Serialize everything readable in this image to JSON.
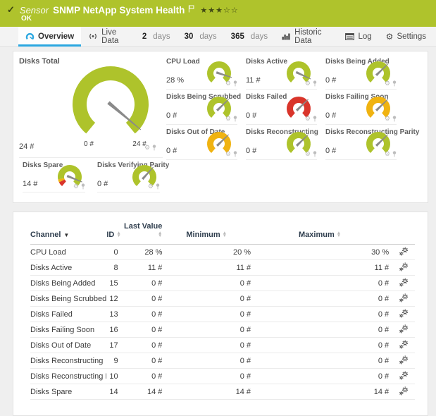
{
  "header": {
    "check": "✓",
    "kind": "Sensor",
    "title": "SNMP NetApp System Health",
    "status": "OK",
    "stars_filled": 3,
    "stars_total": 5
  },
  "tabs": {
    "overview": "Overview",
    "live_data": "Live Data",
    "d2": {
      "num": "2",
      "unit": "days"
    },
    "d30": {
      "num": "30",
      "unit": "days"
    },
    "d365": {
      "num": "365",
      "unit": "days"
    },
    "historic": "Historic Data",
    "log": "Log",
    "settings": "Settings"
  },
  "icons": {
    "gear": "⚙",
    "settings_gear": "⚙",
    "flag": "⚐",
    "star_filled": "★",
    "star_empty": "☆",
    "sort_up": "▲",
    "sort_down": "▼",
    "sort_active": "▼"
  },
  "colors": {
    "header_green": "#afc32c",
    "gauge_green": "#aec32b",
    "gauge_red": "#d9352b",
    "gauge_yellow": "#f0b311",
    "accent_blue": "#2ba7e0"
  },
  "gauges": {
    "main": {
      "label": "Disks Total",
      "value": "24 #",
      "scale_min": "0 #",
      "scale_max": "24 #",
      "color": "#aec32b",
      "needle_deg": 130
    },
    "grid": [
      {
        "label": "CPU Load",
        "value": "28 %",
        "color": "#aec32b",
        "needle_deg": 108
      },
      {
        "label": "Disks Active",
        "value": "11 #",
        "color": "#aec32b",
        "needle_deg": 115
      },
      {
        "label": "Disks Being Added",
        "value": "0 #",
        "color": "#aec32b",
        "needle_deg": 46
      },
      {
        "label": "Disks Being Scrubbed",
        "value": "0 #",
        "color": "#aec32b",
        "needle_deg": 46
      },
      {
        "label": "Disks Failed",
        "value": "0 #",
        "color": "#d9352b",
        "needle_deg": 46
      },
      {
        "label": "Disks Failing Soon",
        "value": "0 #",
        "color": "#f0b311",
        "needle_deg": 46
      },
      {
        "label": "Disks Out of Date",
        "value": "0 #",
        "color": "#f0b311",
        "needle_deg": 46
      },
      {
        "label": "Disks Reconstructing",
        "value": "0 #",
        "color": "#aec32b",
        "needle_deg": 46
      },
      {
        "label": "Disks Reconstructing Parity",
        "value": "0 #",
        "color": "#aec32b",
        "needle_deg": 46
      }
    ],
    "bottom": [
      {
        "label": "Disks Spare",
        "value": "14 #",
        "color": "#aec32b",
        "needle_deg": 112,
        "segments": [
          {
            "from": -140,
            "to": -116,
            "color": "#d9352b"
          },
          {
            "from": -116,
            "to": -102,
            "color": "#f0b311"
          },
          {
            "from": -102,
            "to": 140,
            "color": "#aec32b"
          }
        ]
      },
      {
        "label": "Disks Verifying Parity",
        "value": "0 #",
        "color": "#aec32b",
        "needle_deg": 42
      }
    ]
  },
  "table": {
    "headers": {
      "channel": "Channel",
      "id": "ID",
      "last_value": "Last Value",
      "minimum": "Minimum",
      "maximum": "Maximum"
    },
    "rows": [
      {
        "channel": "CPU Load",
        "id": "0",
        "last": "28 %",
        "min": "20 %",
        "max": "30 %"
      },
      {
        "channel": "Disks Active",
        "id": "8",
        "last": "11 #",
        "min": "11 #",
        "max": "11 #"
      },
      {
        "channel": "Disks Being Added",
        "id": "15",
        "last": "0 #",
        "min": "0 #",
        "max": "0 #"
      },
      {
        "channel": "Disks Being Scrubbed",
        "id": "12",
        "last": "0 #",
        "min": "0 #",
        "max": "0 #"
      },
      {
        "channel": "Disks Failed",
        "id": "13",
        "last": "0 #",
        "min": "0 #",
        "max": "0 #"
      },
      {
        "channel": "Disks Failing Soon",
        "id": "16",
        "last": "0 #",
        "min": "0 #",
        "max": "0 #"
      },
      {
        "channel": "Disks Out of Date",
        "id": "17",
        "last": "0 #",
        "min": "0 #",
        "max": "0 #"
      },
      {
        "channel": "Disks Reconstructing",
        "id": "9",
        "last": "0 #",
        "min": "0 #",
        "max": "0 #"
      },
      {
        "channel": "Disks Reconstructing P...",
        "id": "10",
        "last": "0 #",
        "min": "0 #",
        "max": "0 #"
      },
      {
        "channel": "Disks Spare",
        "id": "14",
        "last": "14 #",
        "min": "14 #",
        "max": "14 #"
      }
    ]
  }
}
